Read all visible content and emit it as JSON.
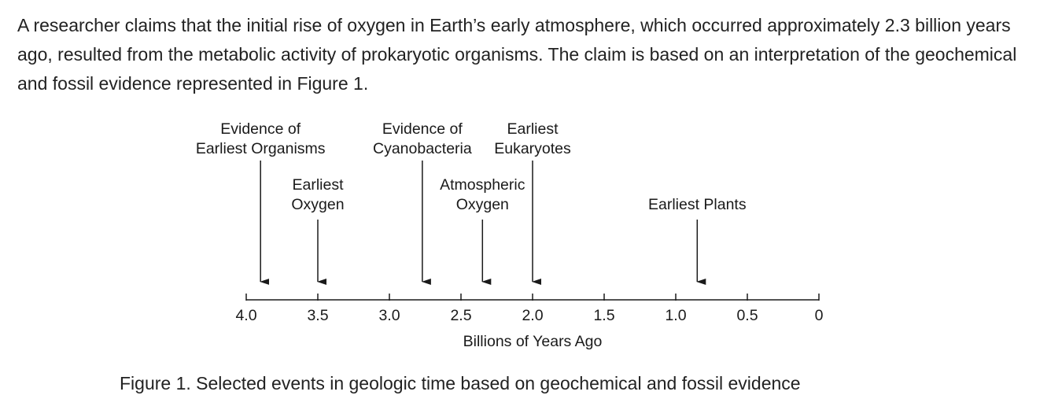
{
  "intro_text": "A researcher claims that the initial rise of oxygen in Earth’s early atmosphere, which occurred approximately 2.3 billion years ago, resulted from the metabolic activity of prokaryotic organisms. The claim is based on an interpretation of the geochemical and fossil evidence represented in Figure 1.",
  "figure": {
    "axis_label": "Billions of Years Ago",
    "ticks": [
      "4.0",
      "3.5",
      "3.0",
      "2.5",
      "2.0",
      "1.5",
      "1.0",
      "0.5",
      "0"
    ],
    "events": [
      {
        "label_lines": [
          "Evidence of",
          "Earliest Organisms"
        ],
        "value": 3.9
      },
      {
        "label_lines": [
          "Earliest",
          "Oxygen"
        ],
        "value": 3.5
      },
      {
        "label_lines": [
          "Evidence of",
          "Cyanobacteria"
        ],
        "value": 2.77
      },
      {
        "label_lines": [
          "Atmospheric",
          "Oxygen"
        ],
        "value": 2.35
      },
      {
        "label_lines": [
          "Earliest",
          "Eukaryotes"
        ],
        "value": 2.0
      },
      {
        "label_lines": [
          "Earliest Plants"
        ],
        "value": 0.85
      }
    ]
  },
  "caption": "Figure 1. Selected events in geologic time based on geochemical and fossil evidence"
}
